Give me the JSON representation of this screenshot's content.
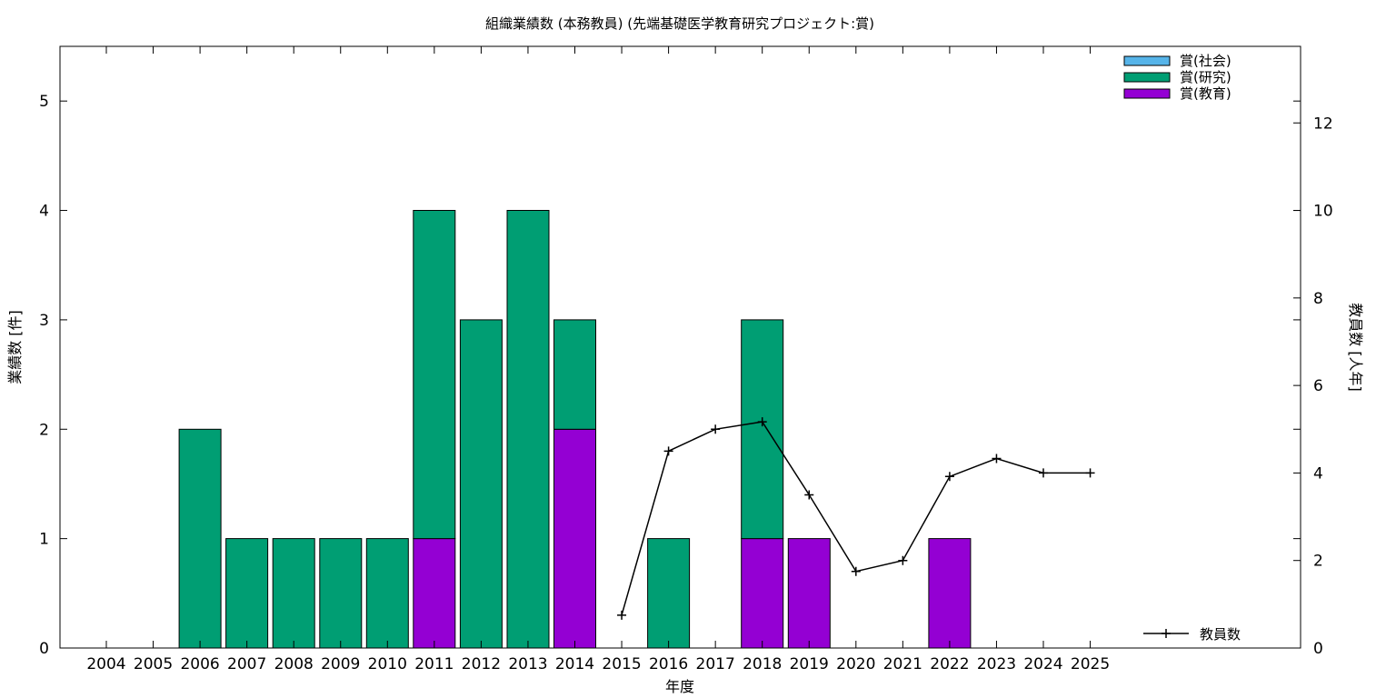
{
  "chart_data": {
    "type": "bar",
    "title": "組織業績数 (本務教員) (先端基礎医学教育研究プロジェクト:賞)",
    "xlabel": "年度",
    "ylabel": "業績数 [件]",
    "y2label": "教員数 [人年]",
    "categories": [
      "2004",
      "2005",
      "2006",
      "2007",
      "2008",
      "2009",
      "2010",
      "2011",
      "2012",
      "2013",
      "2014",
      "2015",
      "2016",
      "2017",
      "2018",
      "2019",
      "2020",
      "2021",
      "2022",
      "2023",
      "2024",
      "2025"
    ],
    "stacked": true,
    "ylim": [
      0,
      5.5
    ],
    "y2lim": [
      0,
      13.75
    ],
    "yticks": [
      "0",
      "1",
      "2",
      "3",
      "4",
      "5"
    ],
    "y2ticks": [
      "0",
      "2",
      "4",
      "6",
      "8",
      "10",
      "12"
    ],
    "series": [
      {
        "name": "賞(社会)",
        "color": "#56b4e9",
        "values": [
          0,
          0,
          0,
          0,
          0,
          0,
          0,
          0,
          0,
          0,
          0,
          0,
          0,
          0,
          0,
          0,
          0,
          0,
          0,
          0,
          0,
          0
        ]
      },
      {
        "name": "賞(研究)",
        "color": "#009e73",
        "values": [
          0,
          0,
          2,
          1,
          1,
          1,
          1,
          3,
          3,
          4,
          1,
          0,
          1,
          0,
          2,
          0,
          0,
          0,
          0,
          0,
          0,
          0
        ]
      },
      {
        "name": "賞(教育)",
        "color": "#9400d3",
        "values": [
          0,
          0,
          0,
          0,
          0,
          0,
          0,
          1,
          0,
          0,
          2,
          0,
          0,
          0,
          1,
          1,
          0,
          0,
          1,
          0,
          0,
          0
        ]
      }
    ],
    "line_series": {
      "name": "教員数",
      "color": "#000000",
      "axis": "y2",
      "x": [
        "2015",
        "2016",
        "2017",
        "2018",
        "2019",
        "2020",
        "2021",
        "2022",
        "2023",
        "2024",
        "2025"
      ],
      "values": [
        0.75,
        4.5,
        5.0,
        5.17,
        3.5,
        1.75,
        2.0,
        3.92,
        4.33,
        4.0,
        4.0
      ]
    },
    "legend_position": "top-right",
    "line_legend_position": "bottom-right",
    "grid": false
  }
}
